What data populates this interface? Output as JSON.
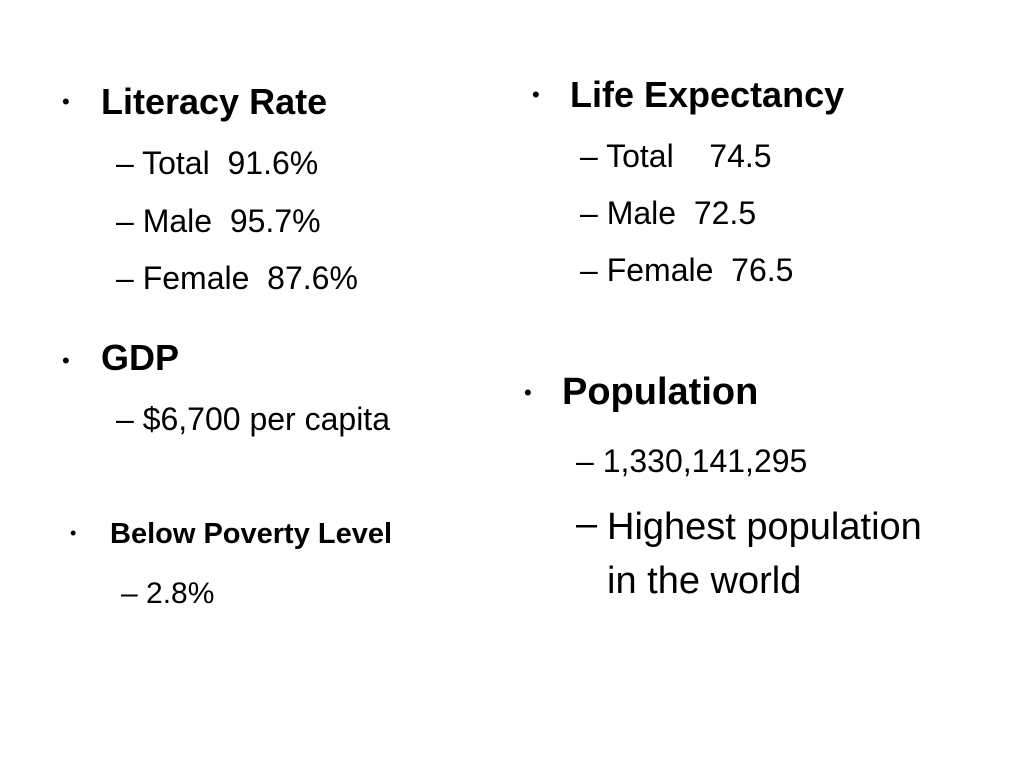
{
  "slide": {
    "literacy": {
      "heading": "Literacy Rate",
      "items": [
        "Total  91.6%",
        "Male  95.7%",
        "Female  87.6%"
      ]
    },
    "gdp": {
      "heading": "GDP",
      "items": [
        "$6,700 per capita"
      ]
    },
    "poverty": {
      "heading": "Below Poverty Level",
      "items": [
        "2.8%"
      ]
    },
    "life_expectancy": {
      "heading": "Life Expectancy",
      "items": [
        "Total    74.5",
        "Male  72.5",
        "Female  76.5"
      ]
    },
    "population": {
      "heading": "Population",
      "items": [
        "1,330,141,295",
        "Highest population in the world"
      ]
    }
  },
  "glyphs": {
    "bullet": "•",
    "dash": "–"
  }
}
